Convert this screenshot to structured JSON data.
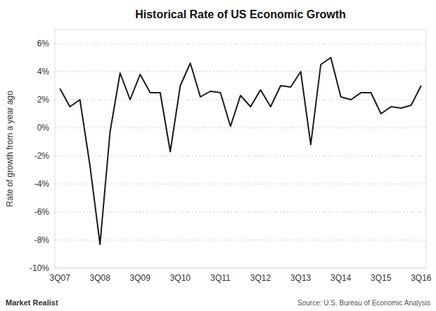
{
  "chart_data": {
    "type": "line",
    "title": "Historical Rate of US Economic Growth",
    "ylabel": "Rate of growth from a year ago",
    "source": "Source: U.S. Bureau of Economic Analysis",
    "watermark": "Market Realist",
    "categories": [
      "3Q07",
      null,
      null,
      null,
      "3Q08",
      null,
      null,
      null,
      "3Q09",
      null,
      null,
      null,
      "3Q10",
      null,
      null,
      null,
      "3Q11",
      null,
      null,
      null,
      "3Q12",
      null,
      null,
      null,
      "3Q13",
      null,
      null,
      null,
      "3Q14",
      null,
      null,
      null,
      "3Q15",
      null,
      null,
      null,
      "3Q16"
    ],
    "values": [
      2.8,
      1.5,
      2.0,
      -2.7,
      -8.3,
      -0.3,
      3.9,
      2.0,
      3.8,
      2.5,
      2.5,
      -1.7,
      3.0,
      4.6,
      2.2,
      2.6,
      2.5,
      0.1,
      2.3,
      1.5,
      2.7,
      1.5,
      3.0,
      2.9,
      4.0,
      -1.2,
      4.5,
      5.0,
      2.2,
      2.0,
      2.5,
      2.5,
      1.0,
      1.5,
      1.4,
      1.6,
      3.0
    ],
    "color": "#1a1a1a",
    "ylim": [
      -10,
      7
    ],
    "yticks": [
      {
        "value": -10,
        "label": "-10%"
      },
      {
        "value": -8,
        "label": "-8%"
      },
      {
        "value": -6,
        "label": "-6%"
      },
      {
        "value": -4,
        "label": "-4%"
      },
      {
        "value": -2,
        "label": "-2%"
      },
      {
        "value": 0,
        "label": "0%"
      },
      {
        "value": 2,
        "label": "2%"
      },
      {
        "value": 4,
        "label": "4%"
      },
      {
        "value": 6,
        "label": "6%"
      }
    ],
    "grid": true
  }
}
